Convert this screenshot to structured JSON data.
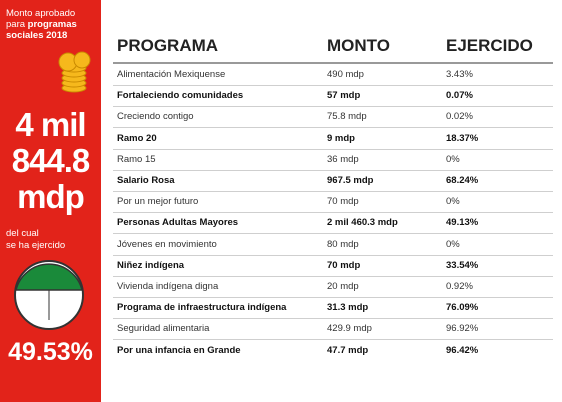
{
  "sidebar": {
    "intro": [
      "Monto aprobado",
      "para"
    ],
    "intro_bold": [
      "programas",
      "sociales 2018"
    ],
    "amount_lines": [
      "4 mil",
      "844.8",
      "mdp"
    ],
    "note": [
      "del cual",
      "se ha ejercido"
    ],
    "percent": "49.53%"
  },
  "table": {
    "headers": [
      "PROGRAMA",
      "MONTO",
      "EJERCIDO"
    ],
    "rows": [
      {
        "cells": [
          "Alimentación Mexiquense",
          "490 mdp",
          "3.43%"
        ],
        "bold": false
      },
      {
        "cells": [
          "Fortaleciendo comunidades",
          "57 mdp",
          "0.07%"
        ],
        "bold": true
      },
      {
        "cells": [
          "Creciendo contigo",
          "75.8 mdp",
          "0.02%"
        ],
        "bold": false
      },
      {
        "cells": [
          "Ramo 20",
          "9 mdp",
          "18.37%"
        ],
        "bold": true
      },
      {
        "cells": [
          "Ramo 15",
          "36 mdp",
          "0%"
        ],
        "bold": false
      },
      {
        "cells": [
          "Salario Rosa",
          "967.5 mdp",
          "68.24%"
        ],
        "bold": true
      },
      {
        "cells": [
          "Por un mejor futuro",
          "70 mdp",
          "0%"
        ],
        "bold": false
      },
      {
        "cells": [
          "Personas Adultas Mayores",
          "2 mil 460.3 mdp",
          "49.13%"
        ],
        "bold": true
      },
      {
        "cells": [
          "Jóvenes en movimiento",
          "80 mdp",
          "0%"
        ],
        "bold": false
      },
      {
        "cells": [
          "Niñez indígena",
          "70 mdp",
          "33.54%"
        ],
        "bold": true
      },
      {
        "cells": [
          "Vivienda indígena digna",
          "20 mdp",
          "0.92%"
        ],
        "bold": false
      },
      {
        "cells": [
          "Programa de infraestructura indígena",
          "31.3 mdp",
          "76.09%"
        ],
        "bold": true
      },
      {
        "cells": [
          "Seguridad alimentaria",
          "429.9 mdp",
          "96.92%"
        ],
        "bold": false
      },
      {
        "cells": [
          "Por una infancia en Grande",
          "47.7 mdp",
          "96.42%"
        ],
        "bold": true
      }
    ]
  }
}
